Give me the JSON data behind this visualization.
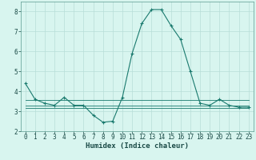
{
  "x": [
    0,
    1,
    2,
    3,
    4,
    5,
    6,
    7,
    8,
    9,
    10,
    11,
    12,
    13,
    14,
    15,
    16,
    17,
    18,
    19,
    20,
    21,
    22,
    23
  ],
  "y_main": [
    4.4,
    3.6,
    3.4,
    3.3,
    3.7,
    3.3,
    3.3,
    2.8,
    2.45,
    2.5,
    3.7,
    5.9,
    7.4,
    8.1,
    8.1,
    7.3,
    6.6,
    5.0,
    3.4,
    3.3,
    3.6,
    3.3,
    3.2,
    3.2
  ],
  "y_flat1": [
    3.55,
    3.55,
    3.55,
    3.55,
    3.55,
    3.55,
    3.55,
    3.55,
    3.55,
    3.55,
    3.55,
    3.55,
    3.55,
    3.55,
    3.55,
    3.55,
    3.55,
    3.55,
    3.55,
    3.55,
    3.55,
    3.55,
    3.55,
    3.55
  ],
  "y_flat2": [
    3.3,
    3.3,
    3.3,
    3.3,
    3.3,
    3.3,
    3.3,
    3.3,
    3.3,
    3.3,
    3.3,
    3.3,
    3.3,
    3.3,
    3.3,
    3.3,
    3.3,
    3.3,
    3.3,
    3.3,
    3.3,
    3.3,
    3.3,
    3.3
  ],
  "y_flat3": [
    3.15,
    3.15,
    3.15,
    3.15,
    3.15,
    3.15,
    3.15,
    3.15,
    3.15,
    3.15,
    3.15,
    3.15,
    3.15,
    3.15,
    3.15,
    3.15,
    3.15,
    3.15,
    3.15,
    3.15,
    3.15,
    3.15,
    3.15,
    3.15
  ],
  "line_color": "#1a7a6e",
  "bg_color": "#d8f5ef",
  "grid_color": "#b8ddd8",
  "xlabel": "Humidex (Indice chaleur)",
  "ylim": [
    2,
    8.5
  ],
  "xlim": [
    -0.5,
    23.5
  ],
  "yticks": [
    2,
    3,
    4,
    5,
    6,
    7,
    8
  ],
  "xticks": [
    0,
    1,
    2,
    3,
    4,
    5,
    6,
    7,
    8,
    9,
    10,
    11,
    12,
    13,
    14,
    15,
    16,
    17,
    18,
    19,
    20,
    21,
    22,
    23
  ],
  "xlabel_fontsize": 6.5,
  "tick_fontsize": 5.5
}
